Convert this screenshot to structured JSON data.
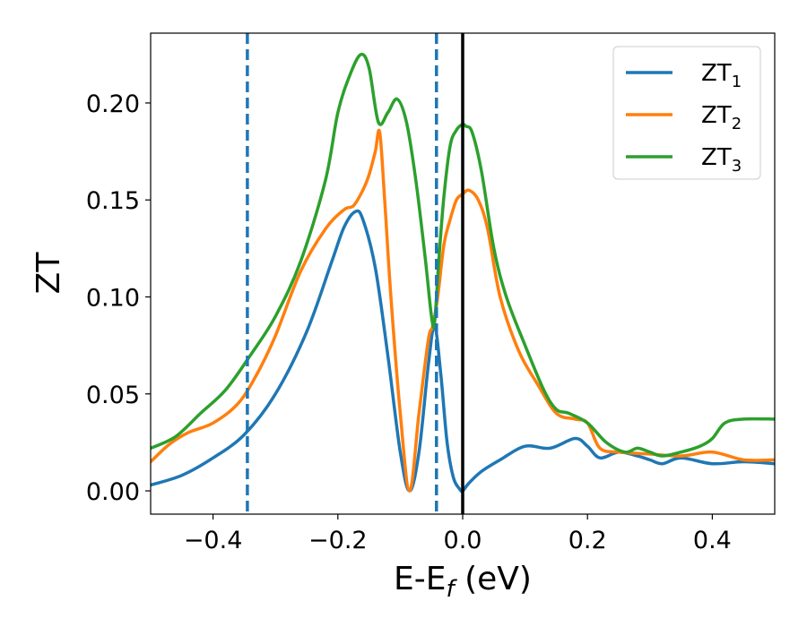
{
  "chart_data": {
    "type": "line",
    "xlabel": "E-E",
    "xlabel_sub": "f",
    "xlabel_unit": " (eV)",
    "ylabel": "ZT",
    "xlim": [
      -0.5,
      0.5
    ],
    "ylim": [
      -0.012,
      0.236
    ],
    "xticks": [
      -0.4,
      -0.2,
      0.0,
      0.2,
      0.4
    ],
    "xtick_labels": [
      "−0.4",
      "−0.2",
      "0.0",
      "0.2",
      "0.4"
    ],
    "yticks": [
      0.0,
      0.05,
      0.1,
      0.15,
      0.2
    ],
    "ytick_labels": [
      "0.00",
      "0.05",
      "0.10",
      "0.15",
      "0.20"
    ],
    "grid": false,
    "legend_position": "top-right",
    "vlines": [
      {
        "x": -0.345,
        "style": "dashed",
        "color": "#1f77b4"
      },
      {
        "x": -0.042,
        "style": "dashed",
        "color": "#1f77b4"
      },
      {
        "x": 0.0,
        "style": "solid",
        "color": "#000000"
      }
    ],
    "series": [
      {
        "name": "ZT",
        "name_sub": "1",
        "color": "#1f77b4",
        "x": [
          -0.5,
          -0.45,
          -0.4,
          -0.35,
          -0.3,
          -0.25,
          -0.21,
          -0.19,
          -0.172,
          -0.16,
          -0.14,
          -0.12,
          -0.1,
          -0.085,
          -0.07,
          -0.055,
          -0.045,
          -0.035,
          -0.025,
          -0.015,
          -0.005,
          0.0,
          0.01,
          0.03,
          0.06,
          0.1,
          0.14,
          0.18,
          0.2,
          0.22,
          0.25,
          0.28,
          0.3,
          0.32,
          0.35,
          0.4,
          0.45,
          0.5
        ],
        "y": [
          0.003,
          0.008,
          0.017,
          0.029,
          0.05,
          0.082,
          0.118,
          0.136,
          0.144,
          0.14,
          0.115,
          0.07,
          0.02,
          0.0,
          0.02,
          0.065,
          0.085,
          0.06,
          0.025,
          0.007,
          0.001,
          0.0,
          0.004,
          0.01,
          0.016,
          0.023,
          0.022,
          0.027,
          0.023,
          0.017,
          0.02,
          0.018,
          0.016,
          0.014,
          0.017,
          0.014,
          0.015,
          0.014
        ]
      },
      {
        "name": "ZT",
        "name_sub": "2",
        "color": "#ff7f0e",
        "x": [
          -0.5,
          -0.47,
          -0.44,
          -0.4,
          -0.36,
          -0.33,
          -0.3,
          -0.26,
          -0.22,
          -0.19,
          -0.175,
          -0.16,
          -0.15,
          -0.14,
          -0.133,
          -0.125,
          -0.115,
          -0.1,
          -0.085,
          -0.07,
          -0.055,
          -0.048,
          -0.04,
          -0.03,
          -0.02,
          -0.01,
          0.0,
          0.01,
          0.025,
          0.04,
          0.06,
          0.09,
          0.12,
          0.15,
          0.18,
          0.2,
          0.22,
          0.25,
          0.3,
          0.35,
          0.4,
          0.45,
          0.5
        ],
        "y": [
          0.015,
          0.024,
          0.03,
          0.035,
          0.045,
          0.06,
          0.08,
          0.113,
          0.135,
          0.145,
          0.147,
          0.155,
          0.163,
          0.175,
          0.185,
          0.15,
          0.1,
          0.04,
          0.0,
          0.04,
          0.078,
          0.085,
          0.1,
          0.127,
          0.14,
          0.15,
          0.153,
          0.155,
          0.15,
          0.135,
          0.1,
          0.072,
          0.055,
          0.04,
          0.037,
          0.035,
          0.022,
          0.02,
          0.019,
          0.018,
          0.02,
          0.016,
          0.016
        ]
      },
      {
        "name": "ZT",
        "name_sub": "3",
        "color": "#2ca02c",
        "x": [
          -0.5,
          -0.46,
          -0.42,
          -0.38,
          -0.34,
          -0.3,
          -0.26,
          -0.22,
          -0.2,
          -0.18,
          -0.163,
          -0.15,
          -0.135,
          -0.12,
          -0.105,
          -0.09,
          -0.075,
          -0.06,
          -0.05,
          -0.045,
          -0.038,
          -0.03,
          -0.02,
          -0.01,
          0.0,
          0.005,
          0.015,
          0.03,
          0.05,
          0.07,
          0.1,
          0.13,
          0.15,
          0.17,
          0.2,
          0.23,
          0.26,
          0.28,
          0.3,
          0.32,
          0.35,
          0.38,
          0.4,
          0.42,
          0.45,
          0.5
        ],
        "y": [
          0.022,
          0.028,
          0.04,
          0.052,
          0.07,
          0.09,
          0.118,
          0.16,
          0.195,
          0.215,
          0.225,
          0.218,
          0.19,
          0.195,
          0.202,
          0.19,
          0.16,
          0.12,
          0.09,
          0.087,
          0.12,
          0.152,
          0.178,
          0.186,
          0.189,
          0.188,
          0.185,
          0.165,
          0.125,
          0.1,
          0.075,
          0.052,
          0.042,
          0.04,
          0.035,
          0.025,
          0.02,
          0.022,
          0.02,
          0.018,
          0.02,
          0.023,
          0.027,
          0.035,
          0.037,
          0.037
        ]
      }
    ]
  }
}
